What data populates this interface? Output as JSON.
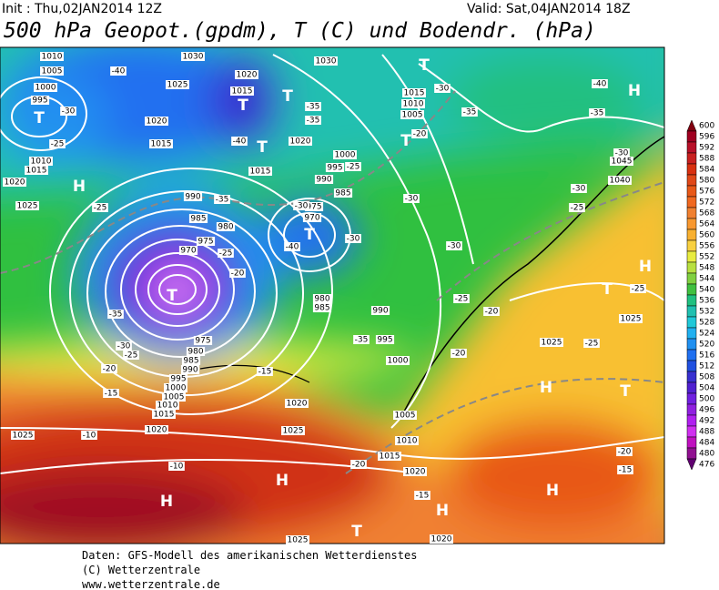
{
  "header": {
    "init": "Init : Thu,02JAN2014 12Z",
    "valid": "Valid: Sat,04JAN2014 18Z",
    "title": "500 hPa Geopot.(gpdm), T (C) und Bodendr. (hPa)"
  },
  "colorbar": {
    "labels": [
      600,
      596,
      592,
      588,
      584,
      580,
      576,
      572,
      568,
      564,
      560,
      556,
      552,
      548,
      544,
      540,
      536,
      532,
      528,
      524,
      520,
      516,
      512,
      508,
      504,
      500,
      496,
      492,
      488,
      484,
      480,
      476
    ],
    "colors": [
      "#800010",
      "#a00020",
      "#b81028",
      "#c82020",
      "#d83010",
      "#e04818",
      "#e85818",
      "#f06820",
      "#f08030",
      "#f89830",
      "#f8b030",
      "#f8d040",
      "#e8ec40",
      "#b8e040",
      "#80d040",
      "#40c040",
      "#20c080",
      "#20c0b0",
      "#20c8d8",
      "#20b0f0",
      "#2090f0",
      "#2070f0",
      "#2050e0",
      "#3830d0",
      "#5020d0",
      "#7020e0",
      "#9020e0",
      "#b020f0",
      "#d030f0",
      "#c010c0",
      "#901090",
      "#600070"
    ]
  },
  "map_labels": {
    "pressure_centers": [
      "H",
      "H",
      "H",
      "H",
      "H",
      "H",
      "H",
      "H",
      "T",
      "T",
      "T",
      "T",
      "T",
      "T",
      "T",
      "T",
      "T",
      "T",
      "T"
    ],
    "isobar_labels": [
      "1010",
      "1005",
      "1000",
      "995",
      "1030",
      "1020",
      "1015",
      "1025",
      "1020",
      "1015",
      "1030",
      "1015",
      "1010",
      "1005",
      "1020",
      "1000",
      "995",
      "990",
      "985",
      "975",
      "970",
      "990",
      "985",
      "980",
      "975",
      "970",
      "980",
      "985",
      "990",
      "995",
      "1000",
      "975",
      "980",
      "985",
      "990",
      "995",
      "1000",
      "1005",
      "1010",
      "1015",
      "1020",
      "1025",
      "1020",
      "1025",
      "1005",
      "1010",
      "1015",
      "1020",
      "1015",
      "1010",
      "1020",
      "1025",
      "1015",
      "1045",
      "1040",
      "1025",
      "1025",
      "1025",
      "1020"
    ],
    "temperature_labels": [
      "-40",
      "-30",
      "-25",
      "-25",
      "-35",
      "-35",
      "-40",
      "-30",
      "-35",
      "-20",
      "-30",
      "-25",
      "-30",
      "-30",
      "-40",
      "-30",
      "-35",
      "-25",
      "-20",
      "-35",
      "-30",
      "-25",
      "-20",
      "-15",
      "-10",
      "-10",
      "-15",
      "-35",
      "-25",
      "-20",
      "-20",
      "-30",
      "-25",
      "-30",
      "-25",
      "-25",
      "-20",
      "-15",
      "-15",
      "-20",
      "-40",
      "-35"
    ]
  },
  "footer": [
    "Daten: GFS-Modell des amerikanischen Wetterdienstes",
    "(C) Wetterzentrale",
    "www.wetterzentrale.de"
  ]
}
